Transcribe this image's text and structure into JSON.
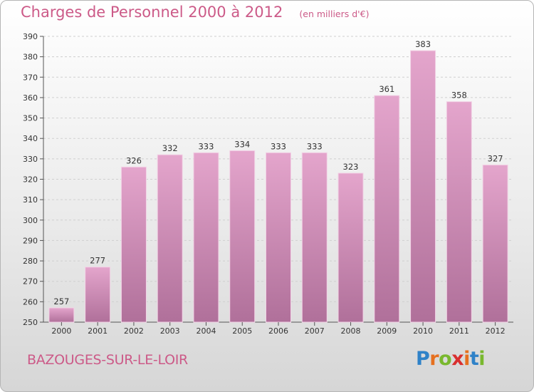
{
  "header": {
    "title": "Charges de Personnel 2000 à 2012",
    "subtitle": "(en milliers d'€)"
  },
  "footer": {
    "commune": "BAZOUGES-SUR-LE-LOIR",
    "brand": "Proxiti",
    "brand_letters": [
      "P",
      "r",
      "o",
      "x",
      "i",
      "t",
      "i"
    ],
    "brand_colors": [
      "#2f82c8",
      "#e6701f",
      "#79b82e",
      "#d92f2f",
      "#e6701f",
      "#2f82c8",
      "#79b82e"
    ]
  },
  "chart_data": {
    "type": "bar",
    "title": "Charges de Personnel 2000 à 2012",
    "subtitle": "(en milliers d'€)",
    "categories": [
      "2000",
      "2001",
      "2002",
      "2003",
      "2004",
      "2005",
      "2006",
      "2007",
      "2008",
      "2009",
      "2010",
      "2011",
      "2012"
    ],
    "values": [
      257,
      277,
      326,
      332,
      333,
      334,
      333,
      333,
      323,
      361,
      383,
      358,
      327
    ],
    "ylim": [
      250,
      390
    ],
    "yticks": [
      250,
      260,
      270,
      280,
      290,
      300,
      310,
      320,
      330,
      340,
      350,
      360,
      370,
      380,
      390
    ],
    "grid": true,
    "bar_color_top": "#e4a5cc",
    "bar_color_bottom": "#b0709a",
    "title_color": "#cc5a88"
  }
}
